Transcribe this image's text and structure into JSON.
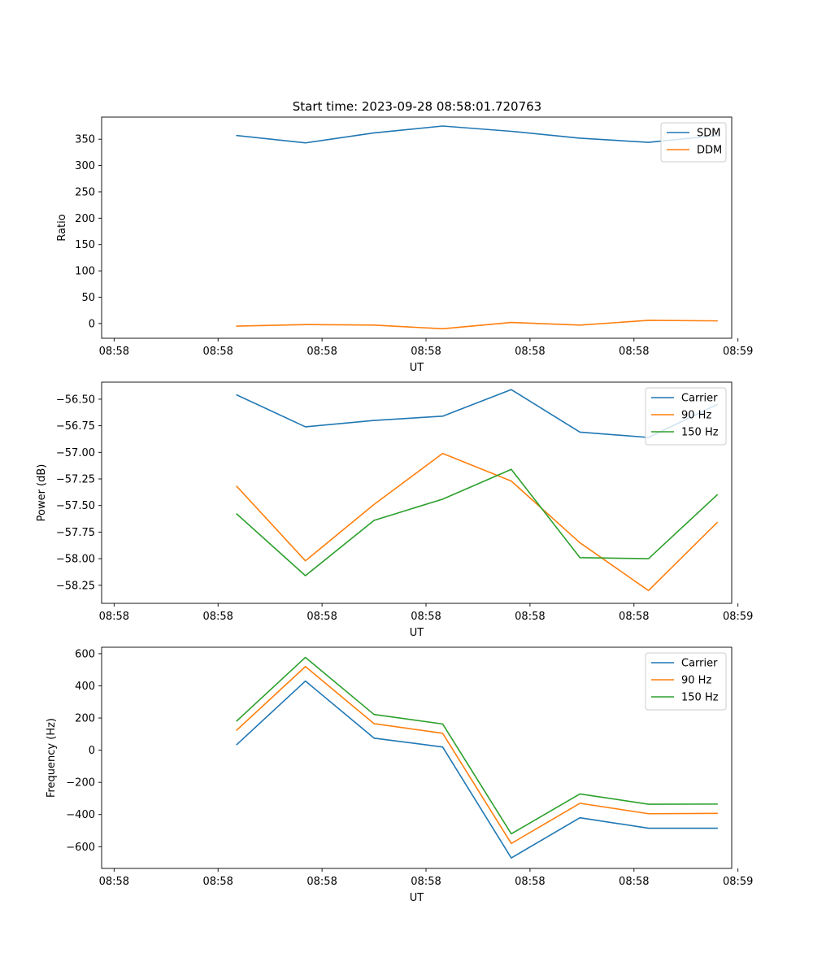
{
  "figure_title": "Start time: 2023-09-28 08:58:01.720763",
  "chart_data": [
    {
      "type": "line",
      "title": "Start time: 2023-09-28 08:58:01.720763",
      "xlabel": "UT",
      "ylabel": "Ratio",
      "x": [
        0.65,
        0.98,
        1.31,
        1.64,
        1.97,
        2.3,
        2.63,
        2.96
      ],
      "xlim": [
        0,
        3.03
      ],
      "xticks": [
        0.06,
        0.56,
        1.06,
        1.56,
        2.06,
        2.56,
        3.06
      ],
      "xtick_labels": [
        "08:58",
        "08:58",
        "08:58",
        "08:58",
        "08:58",
        "08:58",
        "08:59"
      ],
      "ylim": [
        -28,
        392
      ],
      "yticks": [
        0,
        50,
        100,
        150,
        200,
        250,
        300,
        350
      ],
      "ytick_labels": [
        "0",
        "50",
        "100",
        "150",
        "200",
        "250",
        "300",
        "350"
      ],
      "legend_position": "top-right",
      "series": [
        {
          "name": "SDM",
          "color": "#1f77b4",
          "values": [
            357,
            343,
            362,
            375,
            365,
            352,
            344,
            357
          ]
        },
        {
          "name": "DDM",
          "color": "#ff7f0e",
          "values": [
            -5,
            -2,
            -3,
            -10,
            2,
            -3,
            6,
            5
          ]
        }
      ]
    },
    {
      "type": "line",
      "title": "",
      "xlabel": "UT",
      "ylabel": "Power (dB)",
      "x": [
        0.65,
        0.98,
        1.31,
        1.64,
        1.97,
        2.3,
        2.63,
        2.96
      ],
      "xlim": [
        0,
        3.03
      ],
      "xticks": [
        0.06,
        0.56,
        1.06,
        1.56,
        2.06,
        2.56,
        3.06
      ],
      "xtick_labels": [
        "08:58",
        "08:58",
        "08:58",
        "08:58",
        "08:58",
        "08:58",
        "08:59"
      ],
      "ylim": [
        -58.42,
        -56.34
      ],
      "yticks": [
        -58.25,
        -58.0,
        -57.75,
        -57.5,
        -57.25,
        -57.0,
        -56.75,
        -56.5
      ],
      "ytick_labels": [
        "−58.25",
        "−58.00",
        "−57.75",
        "−57.50",
        "−57.25",
        "−57.00",
        "−56.75",
        "−56.50"
      ],
      "legend_position": "top-right",
      "series": [
        {
          "name": "Carrier",
          "color": "#1f77b4",
          "values": [
            -56.46,
            -56.76,
            -56.7,
            -56.66,
            -56.41,
            -56.81,
            -56.86,
            -56.55
          ]
        },
        {
          "name": "90 Hz",
          "color": "#ff7f0e",
          "values": [
            -57.32,
            -58.02,
            -57.49,
            -57.01,
            -57.27,
            -57.85,
            -58.3,
            -57.66
          ]
        },
        {
          "name": "150 Hz",
          "color": "#2ca02c",
          "values": [
            -57.58,
            -58.16,
            -57.64,
            -57.44,
            -57.16,
            -57.99,
            -58.0,
            -57.4
          ]
        }
      ]
    },
    {
      "type": "line",
      "title": "",
      "xlabel": "UT",
      "ylabel": "Frequency (Hz)",
      "x": [
        0.65,
        0.98,
        1.31,
        1.64,
        1.97,
        2.3,
        2.63,
        2.96
      ],
      "xlim": [
        0,
        3.03
      ],
      "xticks": [
        0.06,
        0.56,
        1.06,
        1.56,
        2.06,
        2.56,
        3.06
      ],
      "xtick_labels": [
        "08:58",
        "08:58",
        "08:58",
        "08:58",
        "08:58",
        "08:58",
        "08:59"
      ],
      "ylim": [
        -735,
        640
      ],
      "yticks": [
        -600,
        -400,
        -200,
        0,
        200,
        400,
        600
      ],
      "ytick_labels": [
        "−600",
        "−400",
        "−200",
        "0",
        "200",
        "400",
        "600"
      ],
      "legend_position": "top-right",
      "series": [
        {
          "name": "Carrier",
          "color": "#1f77b4",
          "values": [
            35,
            430,
            75,
            20,
            -670,
            -420,
            -485,
            -485
          ]
        },
        {
          "name": "90 Hz",
          "color": "#ff7f0e",
          "values": [
            125,
            520,
            165,
            105,
            -580,
            -330,
            -395,
            -393
          ]
        },
        {
          "name": "150 Hz",
          "color": "#2ca02c",
          "values": [
            182,
            577,
            222,
            163,
            -520,
            -272,
            -336,
            -335
          ]
        }
      ]
    }
  ]
}
